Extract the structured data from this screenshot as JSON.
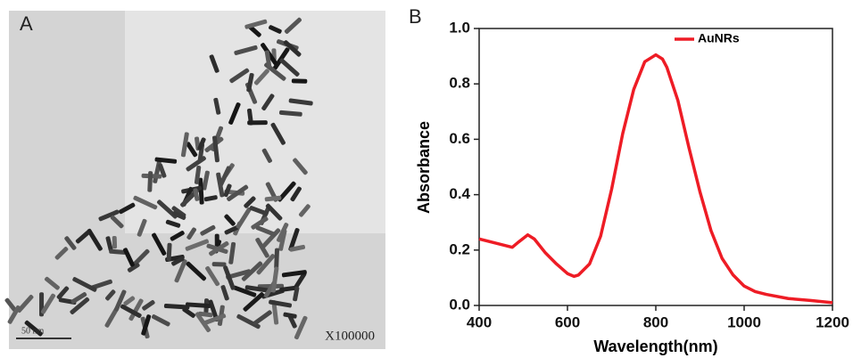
{
  "panel_a": {
    "label": "A",
    "magnification": "X100000",
    "scale_bar": "50 nm"
  },
  "panel_b": {
    "label": "B"
  },
  "chart_data": {
    "type": "line",
    "x_label": "Wavelength(nm)",
    "y_label": "Absorbance",
    "xlim": [
      400,
      1200
    ],
    "ylim": [
      0,
      1
    ],
    "xticks": [
      400,
      600,
      800,
      1000,
      1200
    ],
    "yticks": [
      {
        "value": 0,
        "label": "0.0"
      },
      0.2,
      0.4,
      0.6,
      0.8,
      {
        "value": 1,
        "label": "1.0"
      }
    ],
    "legend": "top",
    "x": [
      400,
      425,
      450,
      475,
      490,
      510,
      525,
      550,
      575,
      600,
      615,
      625,
      650,
      675,
      700,
      725,
      750,
      775,
      800,
      815,
      825,
      850,
      875,
      900,
      925,
      950,
      975,
      1000,
      1025,
      1050,
      1100,
      1150,
      1200
    ],
    "series": [
      {
        "name": "AuNRs",
        "color": "#ee1c25",
        "values": [
          0.24,
          0.23,
          0.22,
          0.21,
          0.23,
          0.255,
          0.24,
          0.19,
          0.15,
          0.115,
          0.105,
          0.11,
          0.15,
          0.25,
          0.42,
          0.62,
          0.78,
          0.88,
          0.905,
          0.89,
          0.86,
          0.74,
          0.57,
          0.41,
          0.27,
          0.17,
          0.11,
          0.07,
          0.05,
          0.04,
          0.025,
          0.018,
          0.01
        ]
      }
    ]
  }
}
